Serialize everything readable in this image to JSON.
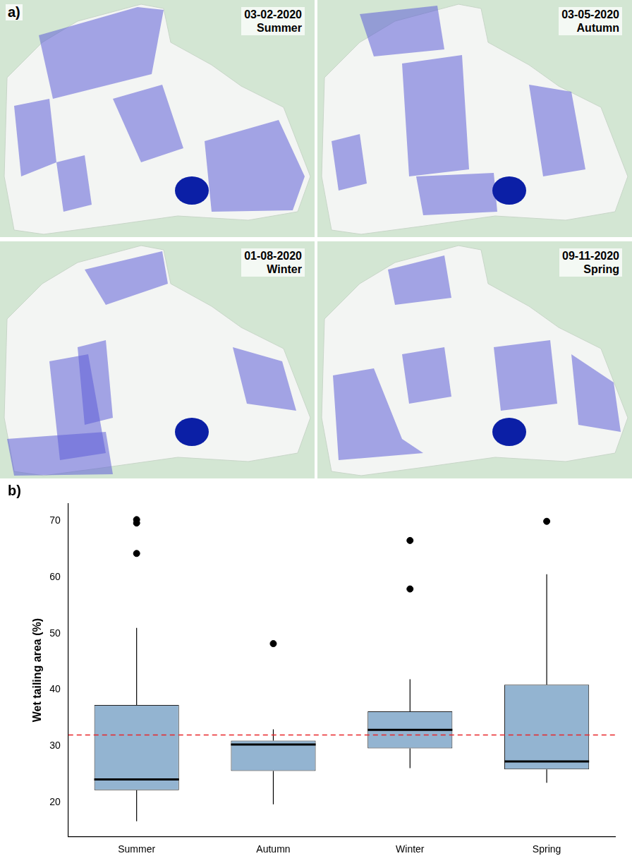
{
  "panel_a": {
    "label": "a)",
    "maps": [
      {
        "date": "03-02-2020",
        "season": "Summer"
      },
      {
        "date": "03-05-2020",
        "season": "Autumn"
      },
      {
        "date": "01-08-2020",
        "season": "Winter"
      },
      {
        "date": "09-11-2020",
        "season": "Spring"
      }
    ]
  },
  "chart_data": {
    "type": "box",
    "panel_label": "b)",
    "y_label": "Wet tailing area (%)",
    "categories": [
      "Summer",
      "Autumn",
      "Winter",
      "Spring"
    ],
    "boxes": [
      {
        "whisker_low": 16.7,
        "q1": 22.2,
        "median": 24.1,
        "q3": 37.3,
        "whisker_high": 51.0,
        "outliers": [
          70.2,
          69.6,
          64.2
        ]
      },
      {
        "whisker_low": 19.7,
        "q1": 25.6,
        "median": 30.3,
        "q3": 31.0,
        "whisker_high": 33.0,
        "outliers": [
          48.2
        ]
      },
      {
        "whisker_low": 26.1,
        "q1": 29.6,
        "median": 32.9,
        "q3": 36.2,
        "whisker_high": 41.9,
        "outliers": [
          66.5,
          57.9
        ]
      },
      {
        "whisker_low": 23.5,
        "q1": 25.9,
        "median": 27.3,
        "q3": 40.9,
        "whisker_high": 60.5,
        "outliers": [
          69.9
        ]
      }
    ],
    "color": "#93b4d1",
    "reference_line": {
      "value": 32,
      "color": "#e8262a",
      "line_style": "dashed"
    },
    "ylim": [
      14,
      73
    ],
    "yticks": [
      20,
      30,
      40,
      50,
      60,
      70
    ],
    "grid": false
  }
}
